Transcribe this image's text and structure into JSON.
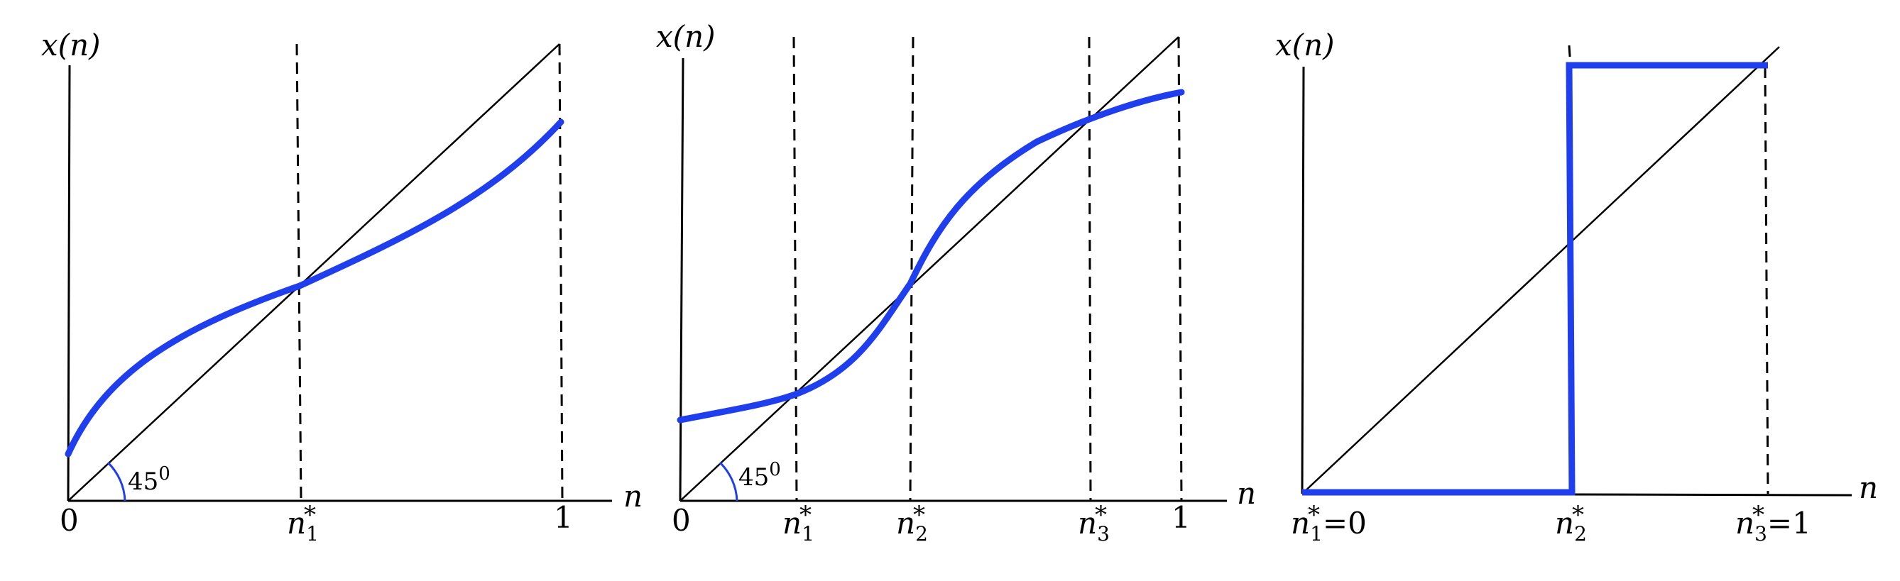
{
  "colors": {
    "curve": "#1f3fef",
    "axis": "#000000"
  },
  "panels": [
    {
      "y_axis_label": "x(n)",
      "x_axis_label": "n",
      "angle_label": "45",
      "angle_unit": "0",
      "tick_labels": {
        "origin": "0",
        "n1": "n",
        "n1_sub": "1",
        "n1_star": "*",
        "one": "1"
      }
    },
    {
      "y_axis_label": "x(n)",
      "x_axis_label": "n",
      "angle_label": "45",
      "angle_unit": "0",
      "tick_labels": {
        "origin": "0",
        "n1": "n",
        "n1_sub": "1",
        "n1_star": "*",
        "n2": "n",
        "n2_sub": "2",
        "n2_star": "*",
        "n3": "n",
        "n3_sub": "3",
        "n3_star": "*",
        "one": "1"
      }
    },
    {
      "y_axis_label": "x(n)",
      "x_axis_label": "n",
      "tick_labels": {
        "n1": "n",
        "n1_sub": "1",
        "n1_star": "*",
        "n1_eq": "=0",
        "n2": "n",
        "n2_sub": "2",
        "n2_star": "*",
        "n3": "n",
        "n3_sub": "3",
        "n3_star": "*",
        "n3_eq": "=1"
      }
    }
  ]
}
